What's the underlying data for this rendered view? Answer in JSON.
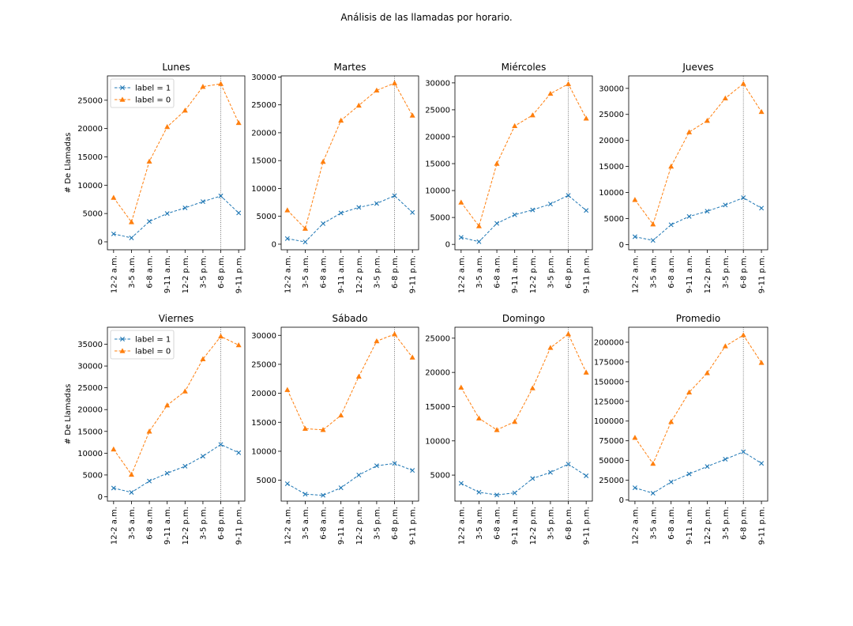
{
  "figure_title": "Análisis de las llamadas por horario.",
  "colors": {
    "series_1": "#1f77b4",
    "series_0": "#ff7f0e",
    "vline": "#555555"
  },
  "chart_data": [
    {
      "type": "line",
      "title": "Lunes",
      "xlabel": "",
      "ylabel": "# De Llamadas",
      "categories": [
        "12-2 a.m.",
        "3-5 a.m.",
        "6-8 a.m.",
        "9-11 a.m.",
        "12-2 p.m.",
        "3-5 p.m.",
        "6-8 p.m.",
        "9-11 p.m."
      ],
      "series": [
        {
          "name": "label = 1",
          "marker": "x",
          "values": [
            1400,
            700,
            3600,
            5000,
            6000,
            7100,
            8100,
            5100
          ]
        },
        {
          "name": "label = 0",
          "marker": "triangle",
          "values": [
            7800,
            3500,
            14200,
            20300,
            23200,
            27400,
            27900,
            21000
          ]
        }
      ],
      "ylim": [
        -1400,
        29300
      ],
      "yticks": [
        0,
        5000,
        10000,
        15000,
        20000,
        25000
      ],
      "vline_category": "6-8 p.m.",
      "legend": "upper-left"
    },
    {
      "type": "line",
      "title": "Martes",
      "xlabel": "",
      "ylabel": "",
      "categories": [
        "12-2 a.m.",
        "3-5 a.m.",
        "6-8 a.m.",
        "9-11 a.m.",
        "12-2 p.m.",
        "3-5 p.m.",
        "6-8 p.m.",
        "9-11 p.m."
      ],
      "series": [
        {
          "name": "label = 1",
          "marker": "x",
          "values": [
            1000,
            400,
            3700,
            5600,
            6600,
            7300,
            8700,
            5700
          ]
        },
        {
          "name": "label = 0",
          "marker": "triangle",
          "values": [
            6100,
            2800,
            14800,
            22200,
            24900,
            27600,
            28900,
            23100
          ]
        }
      ],
      "ylim": [
        -1000,
        30200
      ],
      "yticks": [
        0,
        5000,
        10000,
        15000,
        20000,
        25000,
        30000
      ],
      "vline_category": "6-8 p.m."
    },
    {
      "type": "line",
      "title": "Miércoles",
      "xlabel": "",
      "ylabel": "",
      "categories": [
        "12-2 a.m.",
        "3-5 a.m.",
        "6-8 a.m.",
        "9-11 a.m.",
        "12-2 p.m.",
        "3-5 p.m.",
        "6-8 p.m.",
        "9-11 p.m."
      ],
      "series": [
        {
          "name": "label = 1",
          "marker": "x",
          "values": [
            1300,
            500,
            3900,
            5500,
            6400,
            7500,
            9100,
            6300
          ]
        },
        {
          "name": "label = 0",
          "marker": "triangle",
          "values": [
            7800,
            3400,
            15000,
            22000,
            24000,
            28000,
            29800,
            23400
          ]
        }
      ],
      "ylim": [
        -1000,
        31300
      ],
      "yticks": [
        0,
        5000,
        10000,
        15000,
        20000,
        25000,
        30000
      ],
      "vline_category": "6-8 p.m."
    },
    {
      "type": "line",
      "title": "Jueves",
      "xlabel": "",
      "ylabel": "",
      "categories": [
        "12-2 a.m.",
        "3-5 a.m.",
        "6-8 a.m.",
        "9-11 a.m.",
        "12-2 p.m.",
        "3-5 p.m.",
        "6-8 p.m.",
        "9-11 p.m."
      ],
      "series": [
        {
          "name": "label = 1",
          "marker": "x",
          "values": [
            1500,
            800,
            3800,
            5400,
            6400,
            7600,
            9000,
            7000
          ]
        },
        {
          "name": "label = 0",
          "marker": "triangle",
          "values": [
            8600,
            3900,
            15000,
            21600,
            23800,
            28100,
            30900,
            25500
          ]
        }
      ],
      "ylim": [
        -1000,
        32400
      ],
      "yticks": [
        0,
        5000,
        10000,
        15000,
        20000,
        25000,
        30000
      ],
      "vline_category": "6-8 p.m."
    },
    {
      "type": "line",
      "title": "Viernes",
      "xlabel": "",
      "ylabel": "# De Llamadas",
      "categories": [
        "12-2 a.m.",
        "3-5 a.m.",
        "6-8 a.m.",
        "9-11 a.m.",
        "12-2 p.m.",
        "3-5 p.m.",
        "6-8 p.m.",
        "9-11 p.m."
      ],
      "series": [
        {
          "name": "label = 1",
          "marker": "x",
          "values": [
            2000,
            1000,
            3600,
            5400,
            7000,
            9300,
            12000,
            10100
          ]
        },
        {
          "name": "label = 0",
          "marker": "triangle",
          "values": [
            10900,
            5100,
            15000,
            21000,
            24200,
            31600,
            36800,
            34800
          ]
        }
      ],
      "ylim": [
        -1000,
        38900
      ],
      "yticks": [
        0,
        5000,
        10000,
        15000,
        20000,
        25000,
        30000,
        35000
      ],
      "vline_category": "6-8 p.m.",
      "legend": "upper-left"
    },
    {
      "type": "line",
      "title": "Sábado",
      "xlabel": "",
      "ylabel": "",
      "categories": [
        "12-2 a.m.",
        "3-5 a.m.",
        "6-8 a.m.",
        "9-11 a.m.",
        "12-2 p.m.",
        "3-5 p.m.",
        "6-8 p.m.",
        "9-11 p.m."
      ],
      "series": [
        {
          "name": "label = 1",
          "marker": "x",
          "values": [
            4400,
            2600,
            2400,
            3700,
            5900,
            7500,
            7900,
            6700
          ]
        },
        {
          "name": "label = 0",
          "marker": "triangle",
          "values": [
            20600,
            13900,
            13700,
            16200,
            22900,
            29000,
            30200,
            26200
          ]
        }
      ],
      "ylim": [
        1400,
        31400
      ],
      "yticks": [
        5000,
        10000,
        15000,
        20000,
        25000,
        30000
      ],
      "vline_category": "6-8 p.m."
    },
    {
      "type": "line",
      "title": "Domingo",
      "xlabel": "",
      "ylabel": "",
      "categories": [
        "12-2 a.m.",
        "3-5 a.m.",
        "6-8 a.m.",
        "9-11 a.m.",
        "12-2 p.m.",
        "3-5 p.m.",
        "6-8 p.m.",
        "9-11 p.m."
      ],
      "series": [
        {
          "name": "label = 1",
          "marker": "x",
          "values": [
            3800,
            2500,
            2100,
            2400,
            4500,
            5400,
            6600,
            4900
          ]
        },
        {
          "name": "label = 0",
          "marker": "triangle",
          "values": [
            17800,
            13300,
            11600,
            12800,
            17700,
            23600,
            25600,
            20000
          ]
        }
      ],
      "ylim": [
        1200,
        26600
      ],
      "yticks": [
        5000,
        10000,
        15000,
        20000,
        25000
      ],
      "vline_category": "6-8 p.m."
    },
    {
      "type": "line",
      "title": "Promedio",
      "xlabel": "",
      "ylabel": "",
      "categories": [
        "12-2 a.m.",
        "3-5 a.m.",
        "6-8 a.m.",
        "9-11 a.m.",
        "12-2 p.m.",
        "3-5 p.m.",
        "6-8 p.m.",
        "9-11 p.m."
      ],
      "series": [
        {
          "name": "label = 1",
          "marker": "x",
          "values": [
            15400,
            8500,
            22800,
            33000,
            42400,
            51600,
            61000,
            46400
          ]
        },
        {
          "name": "label = 0",
          "marker": "triangle",
          "values": [
            79000,
            46000,
            99000,
            136500,
            161000,
            195000,
            209000,
            174000
          ]
        }
      ],
      "ylim": [
        -1500,
        219000
      ],
      "yticks": [
        0,
        25000,
        50000,
        75000,
        100000,
        125000,
        150000,
        175000,
        200000
      ],
      "vline_category": "6-8 p.m."
    }
  ]
}
